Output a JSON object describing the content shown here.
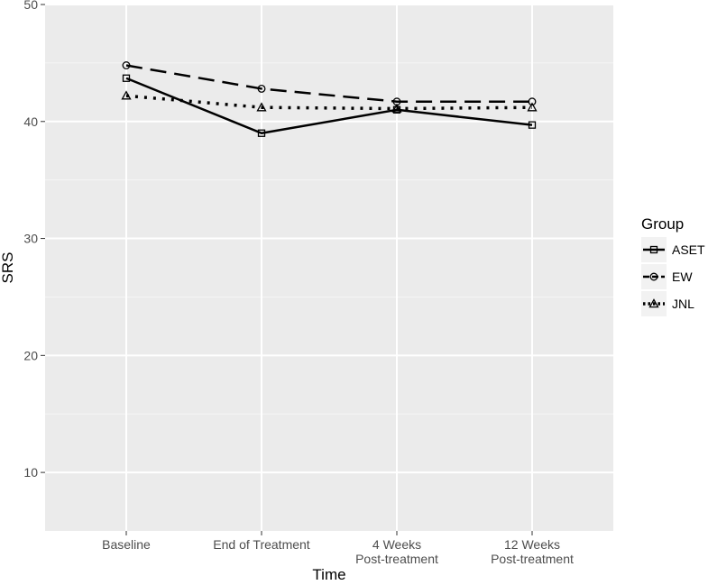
{
  "chart_data": {
    "type": "line",
    "xlabel": "Time",
    "ylabel": "SRS",
    "categories": [
      [
        "Baseline"
      ],
      [
        "End of Treatment"
      ],
      [
        "4 Weeks",
        "Post-treatment"
      ],
      [
        "12 Weeks",
        "Post-treatment"
      ]
    ],
    "ylim": [
      5,
      50
    ],
    "yticks": [
      10,
      20,
      30,
      40,
      50
    ],
    "yticks_labels": [
      "10",
      "20",
      "30",
      "40",
      "50"
    ],
    "grid": true,
    "legend": {
      "title": "Group",
      "position": "right"
    },
    "series": [
      {
        "name": "ASET",
        "linetype": "solid",
        "marker": "square",
        "values": [
          43.7,
          39.0,
          41.0,
          39.7
        ]
      },
      {
        "name": "EW",
        "linetype": "dashed",
        "marker": "circle",
        "values": [
          44.8,
          42.8,
          41.7,
          41.7
        ]
      },
      {
        "name": "JNL",
        "linetype": "dotted",
        "marker": "triangle",
        "values": [
          42.2,
          41.2,
          41.1,
          41.2
        ]
      }
    ]
  },
  "colors": {
    "panel_background": "#ebebeb",
    "grid_major": "#ffffff",
    "grid_minor": "#f5f5f5",
    "series_line": "#000000",
    "legend_key_background": "#f2f2f2"
  }
}
